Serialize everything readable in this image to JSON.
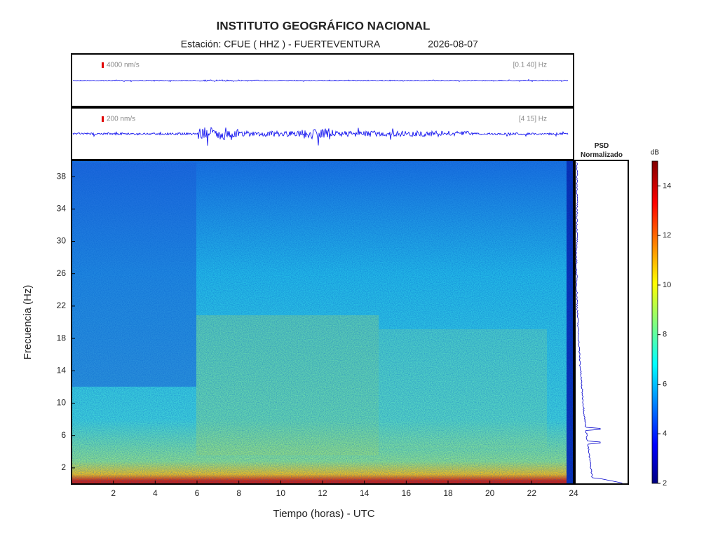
{
  "header": {
    "title": "INSTITUTO GEOGRÁFICO NACIONAL",
    "station": "Estación:  CFUE ( HHZ ) - FUERTEVENTURA",
    "date": "2026-08-07"
  },
  "chart_data": [
    {
      "type": "waveform",
      "scale_label": "4000 nm/s",
      "band_label": "[0.1 40] Hz",
      "color": "#0000ee"
    },
    {
      "type": "waveform",
      "scale_label": "200 nm/s",
      "band_label": "[4 15] Hz",
      "color": "#0000ee"
    },
    {
      "type": "spectrogram",
      "xlabel": "Tiempo (horas) - UTC",
      "ylabel": "Frecuencia  (Hz)",
      "xlim": [
        0,
        24
      ],
      "xticks": [
        2,
        4,
        6,
        8,
        10,
        12,
        14,
        16,
        18,
        20,
        22,
        24
      ],
      "ylim": [
        0,
        40
      ],
      "yticks": [
        2,
        6,
        10,
        14,
        18,
        22,
        26,
        30,
        34,
        38
      ],
      "colorbar": {
        "label": "dB",
        "lim": [
          2,
          15
        ],
        "ticks": [
          2,
          4,
          6,
          8,
          10,
          12,
          14
        ]
      }
    },
    {
      "type": "psd",
      "title": "PSD Normalizado",
      "color": "#0000cc"
    }
  ]
}
